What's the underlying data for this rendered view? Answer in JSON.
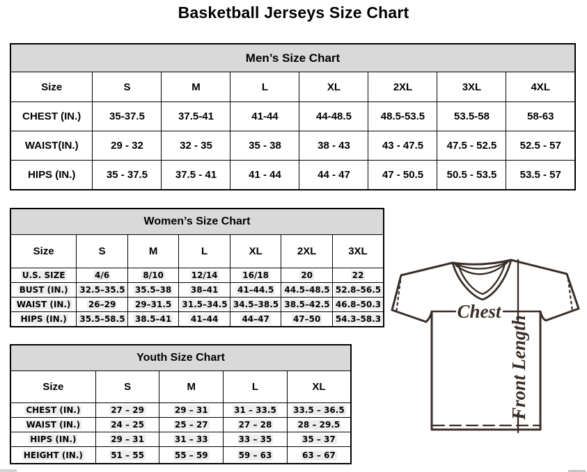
{
  "page": {
    "title": "Basketball Jerseys Size Chart"
  },
  "tables": {
    "men": {
      "header": "Men’s Size Chart",
      "columns": [
        "Size",
        "S",
        "M",
        "L",
        "XL",
        "2XL",
        "3XL",
        "4XL"
      ],
      "rows": [
        [
          "CHEST (IN.)",
          "35-37.5",
          "37.5-41",
          "41-44",
          "44-48.5",
          "48.5-53.5",
          "53.5-58",
          "58-63"
        ],
        [
          "WAIST(IN.)",
          "29 - 32",
          "32 - 35",
          "35 - 38",
          "38 - 43",
          "43 - 47.5",
          "47.5 - 52.5",
          "52.5 - 57"
        ],
        [
          "HIPS (IN.)",
          "35 - 37.5",
          "37.5 - 41",
          "41 - 44",
          "44 - 47",
          "47 - 50.5",
          "50.5 - 53.5",
          "53.5 - 57"
        ]
      ]
    },
    "women": {
      "header": "Women’s Size Chart",
      "columns": [
        "Size",
        "S",
        "M",
        "L",
        "XL",
        "2XL",
        "3XL"
      ],
      "rows": [
        [
          "U.S. SIZE",
          "4/6",
          "8/10",
          "12/14",
          "16/18",
          "20",
          "22"
        ],
        [
          "BUST (IN.)",
          "32.5–35.5",
          "35.5–38",
          "38–41",
          "41–44.5",
          "44.5–48.5",
          "52.8–56.5"
        ],
        [
          "WAIST (IN.)",
          "26–29",
          "29–31.5",
          "31.5–34.5",
          "34.5–38.5",
          "38.5–42.5",
          "46.8–50.3"
        ],
        [
          "HIPS (IN.)",
          "35.5–58.5",
          "38.5–41",
          "41–44",
          "44–47",
          "47–50",
          "54.3–58.3"
        ]
      ]
    },
    "youth": {
      "header": "Youth Size Chart",
      "columns": [
        "Size",
        "S",
        "M",
        "L",
        "XL"
      ],
      "rows": [
        [
          "CHEST (IN.)",
          "27 – 29",
          "29 – 31",
          "31 – 33.5",
          "33.5 – 36.5"
        ],
        [
          "WAIST (IN.)",
          "24 – 25",
          "25 – 27",
          "27 – 28",
          "28 – 29.5"
        ],
        [
          "HIPS (IN.)",
          "29 – 31",
          "31 – 33",
          "33 – 35",
          "35 – 37"
        ],
        [
          "HEIGHT (IN.)",
          "51 – 55",
          "55 – 59",
          "59 – 63",
          "63 – 67"
        ]
      ]
    }
  },
  "diagram": {
    "chest_label": "Chest",
    "front_length_label": "Front Length"
  },
  "colors": {
    "table_header_bg": "#d9d9d9",
    "border": "#000000",
    "diagram_ink": "#3a2d28",
    "value_highlight": "#ededed"
  }
}
